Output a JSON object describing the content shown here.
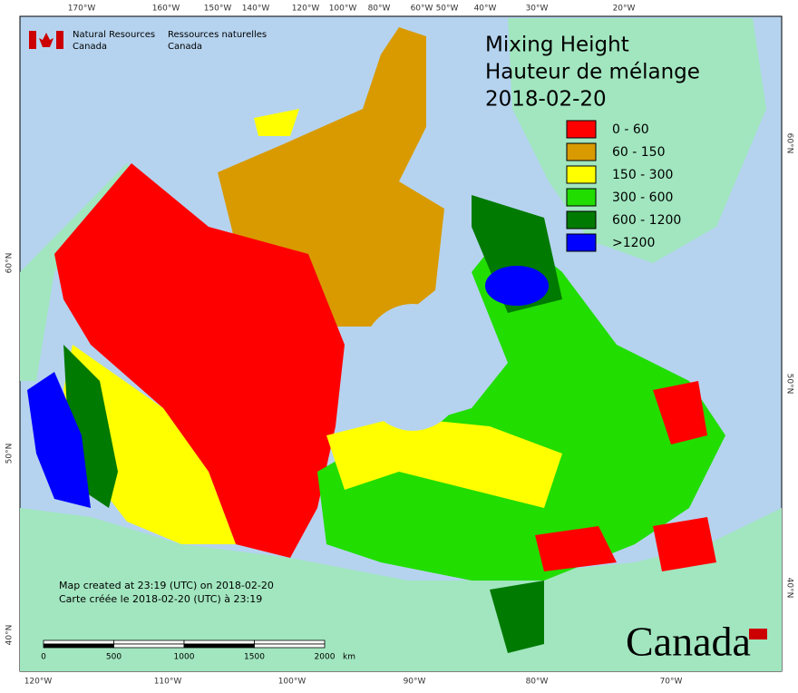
{
  "header": {
    "logo_en": [
      "Natural Resources",
      "Canada"
    ],
    "logo_fr": [
      "Ressources naturelles",
      "Canada"
    ]
  },
  "title": [
    "Mixing Height",
    "Hauteur de mélange",
    "2018-02-20"
  ],
  "legend": [
    {
      "label": "0 - 60",
      "color": "#ff0000"
    },
    {
      "label": "60 - 150",
      "color": "#d99a00"
    },
    {
      "label": "150 - 300",
      "color": "#ffff00"
    },
    {
      "label": "300 - 600",
      "color": "#22dd00"
    },
    {
      "label": "600 - 1200",
      "color": "#007a00"
    },
    {
      "label": ">1200",
      "color": "#0000ff"
    }
  ],
  "graticule": {
    "top": [
      "170°W",
      "160°W",
      "150°W",
      "140°W",
      "120°W",
      "100°W",
      "80°W",
      "60°W",
      "50°W",
      "40°W",
      "30°W",
      "20°W"
    ],
    "bottom": [
      "120°W",
      "110°W",
      "100°W",
      "90°W",
      "80°W",
      "70°W"
    ],
    "left": [
      "60°N",
      "50°N",
      "40°N"
    ],
    "right": [
      "60°N",
      "50°N",
      "40°N"
    ]
  },
  "credit": [
    "Map created at 23:19 (UTC) on 2018-02-20",
    "Carte créée le 2018-02-20 (UTC) à 23:19"
  ],
  "scale_bar": {
    "ticks": [
      0,
      500,
      1000,
      1500,
      2000
    ],
    "unit": "km"
  },
  "wordmark": "Canada"
}
